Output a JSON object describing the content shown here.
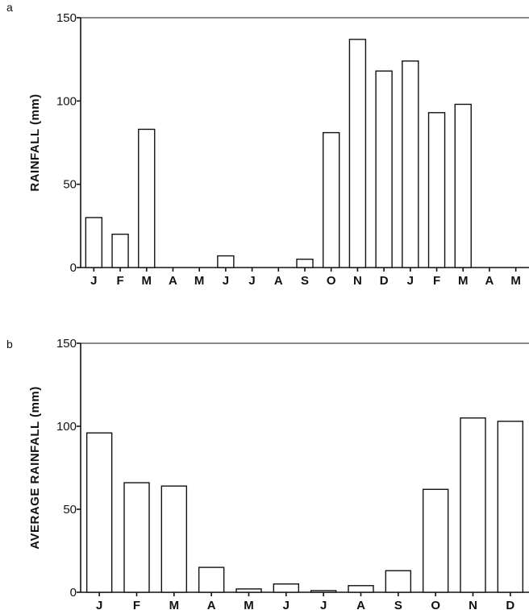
{
  "chart_data": [
    {
      "panel": "a",
      "type": "bar",
      "ylabel": "RAINFALL (mm)",
      "ylim": [
        0,
        150
      ],
      "yticks": [
        0,
        50,
        100,
        150
      ],
      "categories": [
        "J",
        "F",
        "M",
        "A",
        "M",
        "J",
        "J",
        "A",
        "S",
        "O",
        "N",
        "D",
        "J",
        "F",
        "M",
        "A",
        "M"
      ],
      "values": [
        30,
        20,
        83,
        0,
        0,
        7,
        0,
        0,
        5,
        81,
        137,
        118,
        124,
        93,
        98,
        0,
        0
      ],
      "grid": false
    },
    {
      "panel": "b",
      "type": "bar",
      "ylabel": "AVERAGE RAINFALL (mm)",
      "ylim": [
        0,
        150
      ],
      "yticks": [
        0,
        50,
        100,
        150
      ],
      "categories": [
        "J",
        "F",
        "M",
        "A",
        "M",
        "J",
        "J",
        "A",
        "S",
        "O",
        "N",
        "D"
      ],
      "values": [
        96,
        66,
        64,
        15,
        2,
        5,
        1,
        4,
        13,
        62,
        105,
        103
      ],
      "grid": false
    }
  ]
}
